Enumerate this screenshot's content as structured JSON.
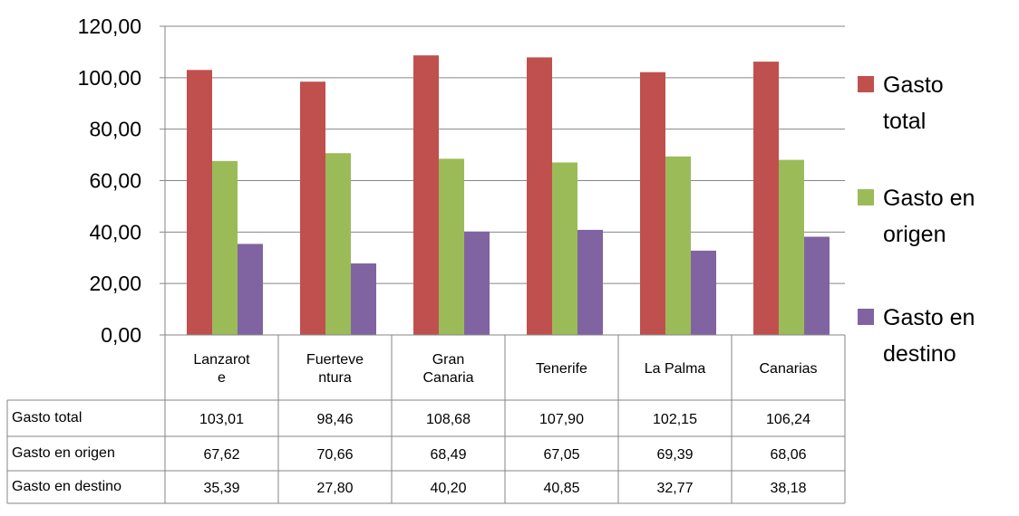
{
  "chart_data": {
    "type": "bar",
    "title": "",
    "categories": [
      [
        "Lanzarot",
        "e"
      ],
      [
        "Fuerteve",
        "ntura"
      ],
      [
        "Gran",
        "Canaria"
      ],
      [
        "Tenerife"
      ],
      [
        "La Palma"
      ],
      [
        "Canarias"
      ]
    ],
    "series": [
      {
        "name": "Gasto total",
        "legend_lines": [
          "Gasto",
          "total"
        ],
        "color": "#C0504D",
        "values": [
          103.01,
          98.46,
          108.68,
          107.9,
          102.15,
          106.24
        ],
        "labels": [
          "103,01",
          "98,46",
          "108,68",
          "107,90",
          "102,15",
          "106,24"
        ]
      },
      {
        "name": "Gasto en origen",
        "legend_lines": [
          "Gasto en",
          "origen"
        ],
        "color": "#9BBB59",
        "values": [
          67.62,
          70.66,
          68.49,
          67.05,
          69.39,
          68.06
        ],
        "labels": [
          "67,62",
          "70,66",
          "68,49",
          "67,05",
          "69,39",
          "68,06"
        ]
      },
      {
        "name": "Gasto en destino",
        "legend_lines": [
          "Gasto en",
          "destino"
        ],
        "color": "#8064A2",
        "values": [
          35.39,
          27.8,
          40.2,
          40.85,
          32.77,
          38.18
        ],
        "labels": [
          "35,39",
          "27,80",
          "40,20",
          "40,85",
          "32,77",
          "38,18"
        ]
      }
    ],
    "yticks": [
      "0,00",
      "20,00",
      "40,00",
      "60,00",
      "80,00",
      "100,00",
      "120,00"
    ],
    "ylim": [
      0,
      120
    ],
    "grid": true,
    "legend_position": "right",
    "data_table": true
  }
}
